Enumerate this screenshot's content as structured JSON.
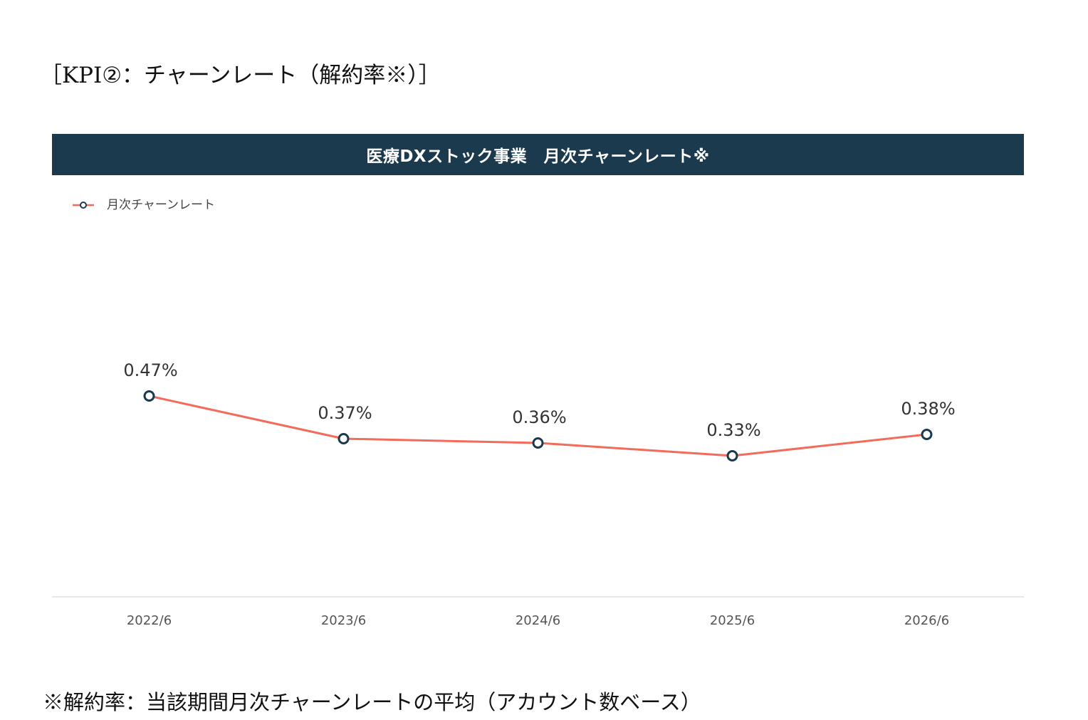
{
  "heading": "［KPI②：チャーンレート（解約率※）］",
  "footnote": "※解約率：当該期間月次チャーンレートの平均（アカウント数ベース）",
  "colors": {
    "banner": "#1b3a4d",
    "line": "#f26b5b",
    "marker_stroke": "#1b3a4d",
    "axis": "#d9d9d9",
    "tick_text": "#555555",
    "label_text": "#333333"
  },
  "chart_data": {
    "type": "line",
    "title": "医療DXストック事業　月次チャーンレート※",
    "categories": [
      "2022/6",
      "2023/6",
      "2024/6",
      "2025/6",
      "2026/6"
    ],
    "series": [
      {
        "name": "月次チャーンレート",
        "values": [
          0.47,
          0.37,
          0.36,
          0.33,
          0.38
        ],
        "labels": [
          "0.47%",
          "0.37%",
          "0.36%",
          "0.33%",
          "0.38%"
        ]
      }
    ],
    "legend": "top-left",
    "grid": false,
    "ylim": [
      0,
      0.9
    ]
  }
}
